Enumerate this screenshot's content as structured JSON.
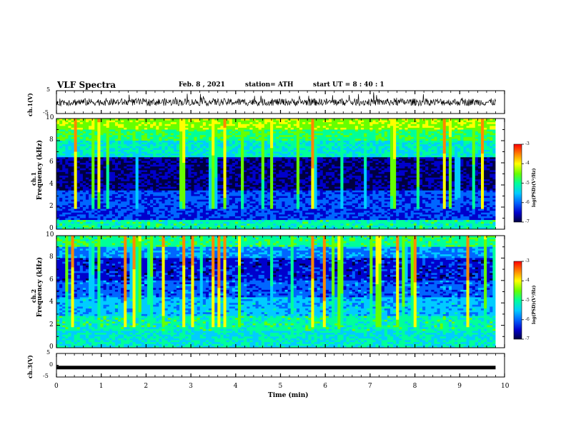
{
  "header": {
    "title": "VLF Spectra",
    "date": "Feb. 8 , 2021",
    "station": "station= ATH",
    "start": "start UT = 8 : 40 : 1"
  },
  "chart_data": [
    {
      "type": "line",
      "panel": "ch1-waveform",
      "ylabel": "ch.1(V)",
      "ylim": [
        -5,
        5
      ],
      "yticks": [
        "5",
        "-5"
      ],
      "xlim": [
        0,
        10
      ],
      "trace_mean": 0,
      "trace_amplitude": 1.6
    },
    {
      "type": "heatmap",
      "panel": "ch1-spectrogram",
      "ylabel": "ch.1\nFrequency (kHz)",
      "ylim": [
        0,
        10
      ],
      "yticks": [
        "0",
        "2",
        "4",
        "6",
        "8",
        "10"
      ],
      "xlim": [
        0,
        10
      ],
      "colorbar": {
        "label": "log(PSD)(V²/Hz)",
        "range": [
          -7,
          -3
        ],
        "ticks": [
          "-3",
          "-4",
          "-5",
          "-6",
          "-7"
        ]
      }
    },
    {
      "type": "heatmap",
      "panel": "ch2-spectrogram",
      "ylabel": "ch.2\nFrequency (kHz)",
      "ylim": [
        0,
        10
      ],
      "yticks": [
        "0",
        "2",
        "4",
        "6",
        "8",
        "10"
      ],
      "xlim": [
        0,
        10
      ],
      "colorbar": {
        "label": "log(PSD)(V²/Hz)",
        "range": [
          -7,
          -3
        ],
        "ticks": [
          "-3",
          "-4",
          "-5",
          "-6",
          "-7"
        ]
      }
    },
    {
      "type": "line",
      "panel": "ch3-waveform",
      "ylabel": "ch.3(V)",
      "ylim": [
        -5,
        5
      ],
      "yticks": [
        "5",
        "0",
        "-5"
      ],
      "xlim": [
        0,
        10
      ],
      "trace_value": -1
    }
  ],
  "xaxis": {
    "label": "Time (min)",
    "ticks": [
      "0",
      "1",
      "2",
      "3",
      "4",
      "5",
      "6",
      "7",
      "8",
      "9",
      "10"
    ],
    "data_end": 9.8
  },
  "colors": {
    "colormap": [
      "#000040",
      "#0000cc",
      "#0066ff",
      "#00ccff",
      "#00ff99",
      "#66ff00",
      "#ffff00",
      "#ff8800",
      "#ff0000"
    ]
  }
}
